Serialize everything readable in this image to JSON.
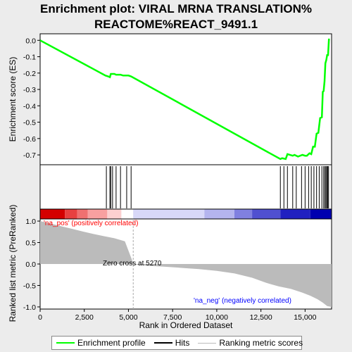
{
  "chart_data": {
    "type": "line",
    "title_line1": "Enrichment plot: VIRAL MRNA TRANSLATION%",
    "title_line2": "REACTOME%REACT_9491.1",
    "xlabel": "Rank in Ordered Dataset",
    "ylabel_top": "Enrichment score (ES)",
    "ylabel_bottom": "Ranked list metric (PreRanked)",
    "x_range": [
      0,
      16500
    ],
    "es_ylim": [
      -0.76,
      0.04
    ],
    "es_yticks": [
      0.0,
      -0.1,
      -0.2,
      -0.3,
      -0.4,
      -0.5,
      -0.6,
      -0.7
    ],
    "metric_ylim": [
      -1.05,
      1.05
    ],
    "metric_yticks": [
      1.0,
      0.5,
      0.0,
      -0.5,
      -1.0
    ],
    "xticks": [
      0,
      2500,
      5000,
      7500,
      10000,
      12500,
      15000
    ],
    "xtick_labels": [
      "0",
      "2,500",
      "5,000",
      "7,500",
      "10,000",
      "12,500",
      "15,000"
    ],
    "es_curve": {
      "x": [
        0,
        3700,
        3850,
        3950,
        4000,
        4050,
        4200,
        4300,
        4550,
        4700,
        4900,
        5000,
        5150,
        13600,
        13700,
        13900,
        14000,
        14300,
        14400,
        14600,
        14850,
        15000,
        15100,
        15250,
        15350,
        15450,
        15550,
        15650,
        15750,
        15850,
        15950,
        16000,
        16050,
        16100,
        16150,
        16200,
        16250,
        16300,
        16350,
        16400
      ],
      "y": [
        0.0,
        -0.215,
        -0.22,
        -0.225,
        -0.205,
        -0.205,
        -0.205,
        -0.21,
        -0.21,
        -0.215,
        -0.215,
        -0.215,
        -0.22,
        -0.725,
        -0.72,
        -0.725,
        -0.695,
        -0.705,
        -0.7,
        -0.71,
        -0.7,
        -0.705,
        -0.705,
        -0.69,
        -0.695,
        -0.65,
        -0.65,
        -0.57,
        -0.565,
        -0.475,
        -0.47,
        -0.315,
        -0.31,
        -0.25,
        -0.14,
        -0.12,
        -0.09,
        -0.09,
        0.005,
        0.005
      ]
    },
    "hits": [
      3750,
      3950,
      4000,
      4100,
      4300,
      4550,
      4900,
      5150,
      13600,
      13800,
      14000,
      14300,
      14500,
      14800,
      15000,
      15200,
      15350,
      15500,
      15650,
      15800,
      15950,
      16050,
      16120,
      16180,
      16230,
      16280,
      16330
    ],
    "metric_curve": {
      "x": [
        0,
        300,
        700,
        1200,
        1800,
        2400,
        3000,
        3600,
        4200,
        4800,
        5270,
        5300,
        6000,
        7000,
        8000,
        9000,
        10000,
        11000,
        12000,
        12800,
        13500,
        14200,
        14800,
        15300,
        15700,
        16000,
        16250,
        16500
      ],
      "y": [
        1.0,
        0.97,
        0.93,
        0.88,
        0.82,
        0.76,
        0.7,
        0.65,
        0.6,
        0.53,
        0.02,
        -0.01,
        -0.04,
        -0.06,
        -0.09,
        -0.12,
        -0.16,
        -0.22,
        -0.32,
        -0.44,
        -0.52,
        -0.58,
        -0.66,
        -0.74,
        -0.82,
        -0.9,
        -0.98,
        -1.0
      ]
    },
    "annotations": {
      "pos_label": "'na_pos' (positively correlated)",
      "neg_label": "'na_neg' (negatively correlated)",
      "zero_cross_label": "Zero cross at 5270",
      "zero_cross_x": 5270
    },
    "colors": {
      "es_line": "#00ff00",
      "hit_line": "#000000",
      "metric_fill": "#bbbbbb",
      "pos_label": "#ff0000",
      "neg_label": "#0000ff",
      "zero_line": "#aaaaaa"
    },
    "heatbar_colors": [
      "#d40000",
      "#e84040",
      "#f07070",
      "#f8a0a0",
      "#fcd0d0",
      "#ffffff",
      "#d8d8f8",
      "#b4b4ee",
      "#8080e0",
      "#5050d0",
      "#2020c0",
      "#0000b0"
    ],
    "legend": [
      "Enrichment profile",
      "Hits",
      "Ranking metric scores"
    ]
  }
}
